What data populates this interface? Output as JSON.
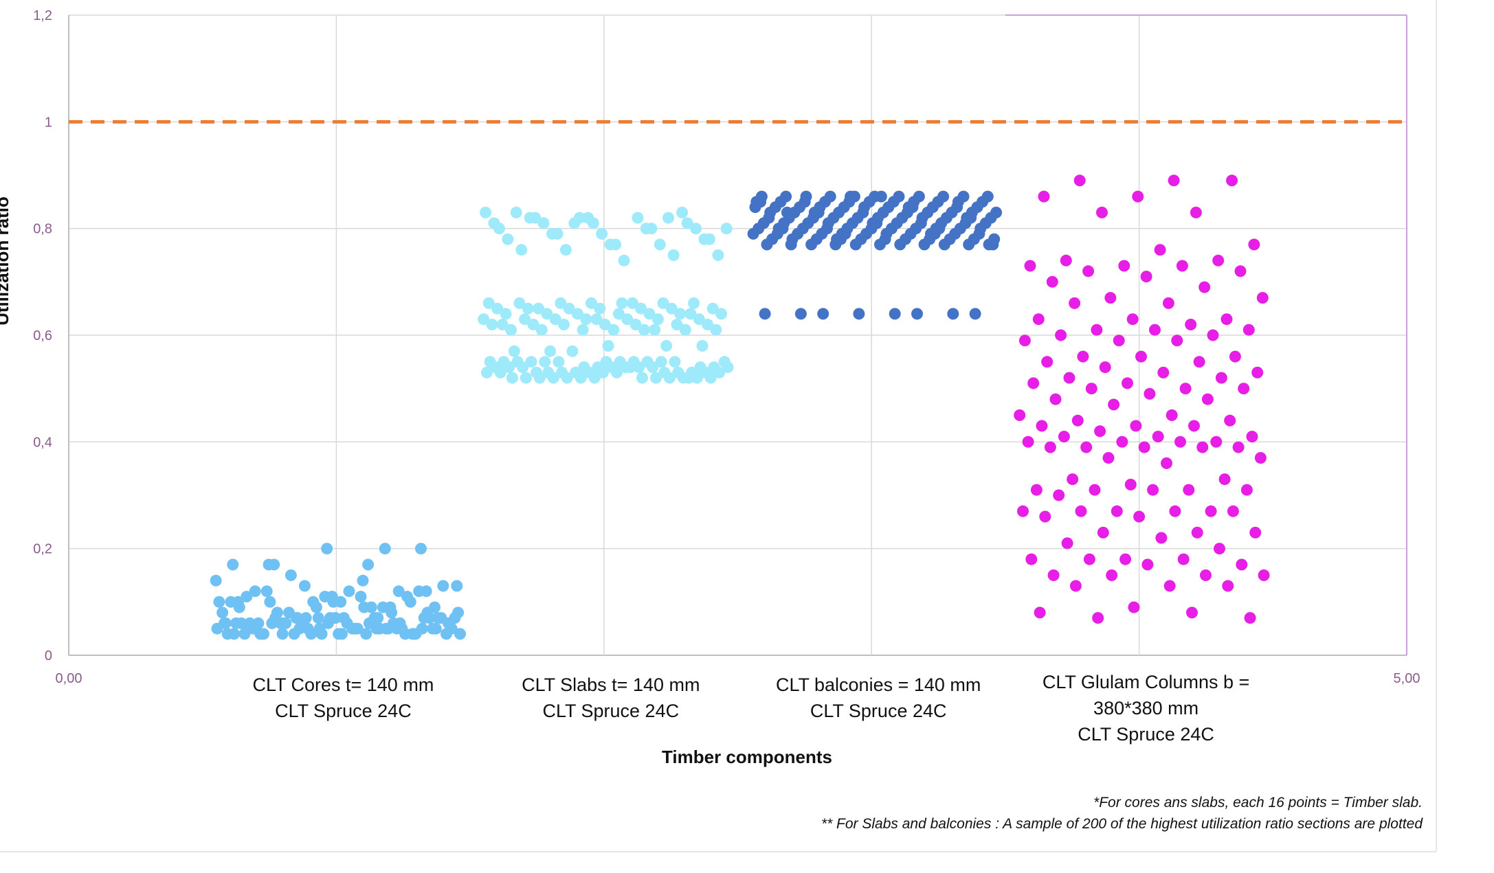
{
  "chart_data": {
    "type": "scatter",
    "xlabel": "Timber components",
    "ylabel": "Utilization ratio",
    "xlim": [
      0,
      5
    ],
    "ylim": [
      0,
      1.2
    ],
    "x_tick_labels": [
      "0,00",
      "5,00"
    ],
    "y_tick_labels": [
      "0",
      "0,2",
      "0,4",
      "0,6",
      "0,8",
      "1",
      "1,2"
    ],
    "y_ticks": [
      0,
      0.2,
      0.4,
      0.6,
      0.8,
      1.0,
      1.2
    ],
    "grid": true,
    "reference_line": {
      "y": 1.0,
      "style": "dashed",
      "color": "#ed7d31"
    },
    "categories": [
      {
        "x": 1,
        "lines": [
          "CLT Cores t= 140 mm",
          "CLT Spruce 24C"
        ]
      },
      {
        "x": 2,
        "lines": [
          "CLT Slabs t= 140 mm",
          "CLT Spruce 24C"
        ]
      },
      {
        "x": 3,
        "lines": [
          "CLT balconies = 140 mm",
          "CLT Spruce 24C"
        ]
      },
      {
        "x": 4,
        "lines": [
          "CLT Glulam Columns b =",
          "380*380 mm",
          "CLT Spruce 24C"
        ]
      }
    ],
    "notes": [
      "*For cores ans slabs, each 16 points = Timber slab.",
      "** For Slabs and balconies : A sample of 200 of the highest utilization ratio  sections  are plotted"
    ],
    "series": [
      {
        "color": "#6ec1f2",
        "x_range": [
          0.5,
          1.5
        ],
        "values": [
          0.14,
          0.17,
          0.17,
          0.12,
          0.11,
          0.1,
          0.09,
          0.07,
          0.06,
          0.05,
          0.04,
          0.04,
          0.07,
          0.06,
          0.05,
          0.04,
          0.09,
          0.1,
          0.11,
          0.12,
          0.13,
          0.13,
          0.14,
          0.17,
          0.2,
          0.2,
          0.17,
          0.2,
          0.15,
          0.13,
          0.12,
          0.12,
          0.11,
          0.1,
          0.1,
          0.09,
          0.08,
          0.07,
          0.07,
          0.06,
          0.06,
          0.05,
          0.05,
          0.05,
          0.04,
          0.04,
          0.04,
          0.04,
          0.05,
          0.06,
          0.07,
          0.07,
          0.06,
          0.05,
          0.05,
          0.04,
          0.04,
          0.06,
          0.07,
          0.07,
          0.06,
          0.05,
          0.04,
          0.04,
          0.05,
          0.06,
          0.1,
          0.09,
          0.08,
          0.07,
          0.06,
          0.05,
          0.04,
          0.04,
          0.05,
          0.06,
          0.07,
          0.11,
          0.12,
          0.12,
          0.11,
          0.1,
          0.09,
          0.08,
          0.07,
          0.06,
          0.05,
          0.04,
          0.04,
          0.05,
          0.06,
          0.07,
          0.08,
          0.1,
          0.09,
          0.08,
          0.07,
          0.06,
          0.05,
          0.04,
          0.04,
          0.05,
          0.06,
          0.07,
          0.06,
          0.05,
          0.04,
          0.05,
          0.06,
          0.07,
          0.08,
          0.09,
          0.1,
          0.05,
          0.06,
          0.04,
          0.05
        ]
      },
      {
        "color": "#9eeafa",
        "x_range": [
          1.5,
          2.5
        ],
        "values": [
          0.82,
          0.81,
          0.81,
          0.8,
          0.8,
          0.79,
          0.78,
          0.77,
          0.76,
          0.75,
          0.82,
          0.83,
          0.82,
          0.81,
          0.8,
          0.79,
          0.78,
          0.77,
          0.76,
          0.75,
          0.74,
          0.82,
          0.83,
          0.82,
          0.81,
          0.8,
          0.79,
          0.78,
          0.77,
          0.83,
          0.82,
          0.81,
          0.8,
          0.66,
          0.65,
          0.64,
          0.63,
          0.62,
          0.61,
          0.66,
          0.65,
          0.64,
          0.63,
          0.62,
          0.61,
          0.66,
          0.65,
          0.64,
          0.63,
          0.62,
          0.61,
          0.66,
          0.65,
          0.64,
          0.63,
          0.62,
          0.61,
          0.66,
          0.65,
          0.64,
          0.63,
          0.62,
          0.61,
          0.66,
          0.65,
          0.64,
          0.63,
          0.62,
          0.61,
          0.66,
          0.65,
          0.64,
          0.63,
          0.62,
          0.61,
          0.66,
          0.65,
          0.64,
          0.63,
          0.62,
          0.61,
          0.57,
          0.58,
          0.58,
          0.57,
          0.58,
          0.57,
          0.55,
          0.54,
          0.53,
          0.52,
          0.52,
          0.53,
          0.54,
          0.55,
          0.52,
          0.53,
          0.54,
          0.55,
          0.52,
          0.53,
          0.54,
          0.55,
          0.52,
          0.53,
          0.54,
          0.55,
          0.52,
          0.53,
          0.54,
          0.55,
          0.52,
          0.53,
          0.54,
          0.55,
          0.52,
          0.53,
          0.54,
          0.55,
          0.52,
          0.53,
          0.54,
          0.55,
          0.52,
          0.53,
          0.54,
          0.55,
          0.52,
          0.53,
          0.54,
          0.55,
          0.52,
          0.53,
          0.54,
          0.55,
          0.52,
          0.53,
          0.54,
          0.55,
          0.52,
          0.53
        ]
      },
      {
        "color": "#4472c4",
        "x_range": [
          2.5,
          3.5
        ],
        "values": [
          0.86,
          0.85,
          0.84,
          0.83,
          0.82,
          0.81,
          0.8,
          0.79,
          0.78,
          0.77,
          0.86,
          0.85,
          0.84,
          0.83,
          0.82,
          0.81,
          0.8,
          0.79,
          0.78,
          0.77,
          0.86,
          0.85,
          0.84,
          0.83,
          0.82,
          0.81,
          0.8,
          0.79,
          0.78,
          0.77,
          0.86,
          0.85,
          0.84,
          0.83,
          0.82,
          0.81,
          0.8,
          0.79,
          0.78,
          0.77,
          0.86,
          0.85,
          0.84,
          0.83,
          0.82,
          0.81,
          0.8,
          0.79,
          0.78,
          0.77,
          0.86,
          0.85,
          0.84,
          0.83,
          0.82,
          0.81,
          0.8,
          0.79,
          0.78,
          0.77,
          0.86,
          0.85,
          0.84,
          0.83,
          0.82,
          0.81,
          0.8,
          0.79,
          0.78,
          0.77,
          0.86,
          0.85,
          0.84,
          0.83,
          0.82,
          0.81,
          0.8,
          0.79,
          0.78,
          0.77,
          0.86,
          0.85,
          0.84,
          0.83,
          0.82,
          0.81,
          0.8,
          0.79,
          0.78,
          0.77,
          0.86,
          0.85,
          0.84,
          0.83,
          0.82,
          0.81,
          0.8,
          0.79,
          0.78,
          0.77,
          0.86,
          0.85,
          0.84,
          0.83,
          0.82,
          0.81,
          0.8,
          0.79,
          0.78,
          0.77,
          0.86,
          0.85,
          0.84,
          0.83,
          0.82,
          0.81,
          0.8,
          0.79,
          0.78,
          0.77,
          0.64,
          0.64,
          0.64,
          0.64,
          0.64,
          0.64,
          0.64,
          0.64,
          0.86,
          0.83,
          0.8,
          0.79
        ]
      },
      {
        "color": "#e61ee6",
        "x_range": [
          3.5,
          4.5
        ],
        "values": [
          0.89,
          0.89,
          0.89,
          0.86,
          0.86,
          0.83,
          0.83,
          0.77,
          0.76,
          0.74,
          0.74,
          0.73,
          0.73,
          0.73,
          0.72,
          0.72,
          0.71,
          0.7,
          0.69,
          0.67,
          0.67,
          0.66,
          0.66,
          0.63,
          0.63,
          0.63,
          0.62,
          0.61,
          0.61,
          0.61,
          0.6,
          0.6,
          0.59,
          0.59,
          0.59,
          0.56,
          0.56,
          0.56,
          0.55,
          0.55,
          0.54,
          0.53,
          0.53,
          0.52,
          0.52,
          0.51,
          0.51,
          0.5,
          0.5,
          0.5,
          0.49,
          0.48,
          0.48,
          0.47,
          0.45,
          0.45,
          0.44,
          0.44,
          0.43,
          0.43,
          0.43,
          0.42,
          0.41,
          0.41,
          0.41,
          0.4,
          0.4,
          0.4,
          0.4,
          0.39,
          0.39,
          0.39,
          0.39,
          0.39,
          0.37,
          0.37,
          0.36,
          0.33,
          0.33,
          0.32,
          0.31,
          0.31,
          0.31,
          0.31,
          0.31,
          0.3,
          0.27,
          0.27,
          0.27,
          0.27,
          0.27,
          0.27,
          0.26,
          0.26,
          0.23,
          0.23,
          0.23,
          0.22,
          0.21,
          0.2,
          0.18,
          0.18,
          0.18,
          0.18,
          0.17,
          0.17,
          0.15,
          0.15,
          0.15,
          0.15,
          0.13,
          0.13,
          0.13,
          0.09,
          0.08,
          0.08,
          0.07,
          0.07
        ]
      }
    ]
  }
}
